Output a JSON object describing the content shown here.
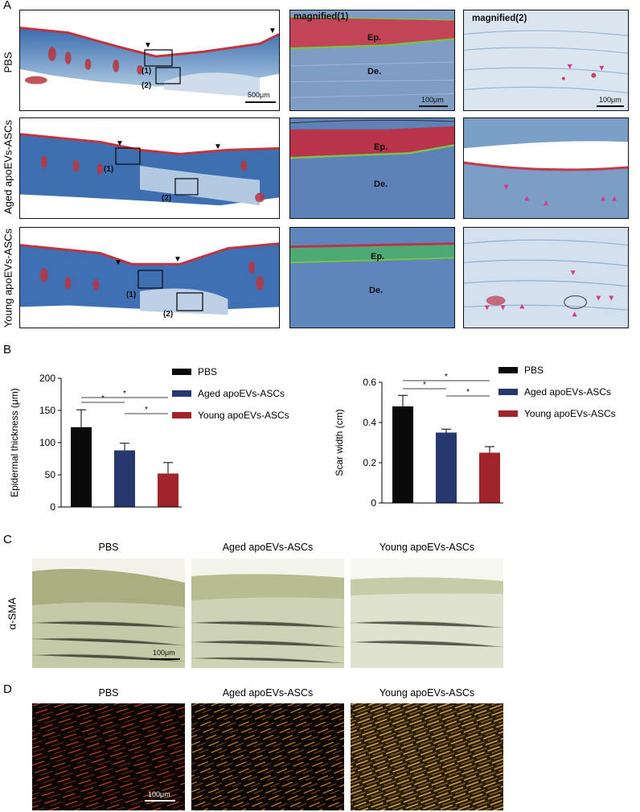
{
  "panels": {
    "A": "A",
    "B": "B",
    "C": "C",
    "D": "D"
  },
  "panelA": {
    "row_labels": [
      "PBS",
      "Aged apoEVs-ASCs",
      "Young apoEVs-ASCs"
    ],
    "col_titles": [
      "magnified(1)",
      "magnified(2)"
    ],
    "ep_label": "Ep.",
    "de_label": "De.",
    "box_labels": [
      "(1)",
      "(2)"
    ],
    "scale_large": "500μm",
    "scale_small": "100μm"
  },
  "panelC": {
    "headers": [
      "PBS",
      "Aged apoEVs-ASCs",
      "Young apoEVs-ASCs"
    ],
    "row_label": "α-SMA",
    "scale": "100μm"
  },
  "panelD": {
    "headers": [
      "PBS",
      "Aged apoEVs-ASCs",
      "Young apoEVs-ASCs"
    ],
    "scale": "100μm"
  },
  "colors": {
    "PBS": "#0a0a0a",
    "Aged": "#26386e",
    "Young": "#a0242a"
  },
  "chart_data": [
    {
      "type": "bar",
      "categories": [
        "PBS",
        "Aged apoEVs-ASCs",
        "Young apoEVs-ASCs"
      ],
      "values": [
        124,
        88,
        52
      ],
      "errors": [
        27,
        11,
        17
      ],
      "ylabel": "Epidermal thickness (μm)",
      "ylim": [
        0,
        200
      ],
      "yticks": [
        0,
        50,
        100,
        150,
        200
      ],
      "significance": [
        {
          "pair": [
            0,
            1
          ],
          "label": "*"
        },
        {
          "pair": [
            0,
            2
          ],
          "label": "*"
        },
        {
          "pair": [
            1,
            2
          ],
          "label": "*"
        }
      ],
      "legend": [
        "PBS",
        "Aged apoEVs-ASCs",
        "Young apoEVs-ASCs"
      ],
      "grid": false
    },
    {
      "type": "bar",
      "categories": [
        "PBS",
        "Aged apoEVs-ASCs",
        "Young apoEVs-ASCs"
      ],
      "values": [
        0.48,
        0.35,
        0.25
      ],
      "errors": [
        0.055,
        0.017,
        0.03
      ],
      "ylabel": "Scar width (cm)",
      "ylim": [
        0,
        0.6
      ],
      "yticks": [
        0,
        0.2,
        0.4,
        0.6
      ],
      "significance": [
        {
          "pair": [
            0,
            1
          ],
          "label": "*"
        },
        {
          "pair": [
            0,
            2
          ],
          "label": "*"
        },
        {
          "pair": [
            1,
            2
          ],
          "label": "*"
        }
      ],
      "legend": [
        "PBS",
        "Aged apoEVs-ASCs",
        "Young apoEVs-ASCs"
      ],
      "grid": false
    }
  ]
}
